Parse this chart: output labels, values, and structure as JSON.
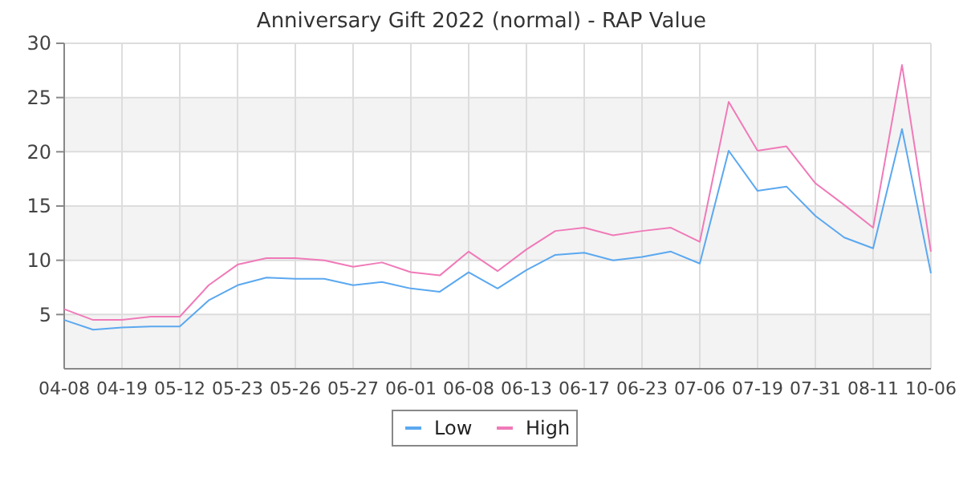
{
  "chart_data": {
    "type": "line",
    "title": "Anniversary Gift 2022 (normal) - RAP Value",
    "categories": [
      "04-08",
      null,
      "04-19",
      null,
      "05-12",
      null,
      "05-23",
      null,
      "05-26",
      null,
      "05-27",
      null,
      "06-01",
      null,
      "06-08",
      null,
      "06-13",
      null,
      "06-17",
      null,
      "06-23",
      null,
      "07-06",
      null,
      "07-19",
      null,
      "07-31",
      null,
      "08-11",
      null,
      "10-06"
    ],
    "series": [
      {
        "name": "Low",
        "color": "#5ba8f0",
        "values": [
          4.5,
          3.6,
          3.8,
          3.9,
          3.9,
          6.3,
          7.7,
          8.4,
          8.3,
          8.3,
          7.7,
          8.0,
          7.4,
          7.1,
          8.9,
          7.4,
          9.1,
          10.5,
          10.7,
          10.0,
          10.3,
          10.8,
          9.7,
          20.1,
          16.4,
          16.8,
          14.1,
          12.1,
          11.1,
          22.1,
          8.8
        ]
      },
      {
        "name": "High",
        "color": "#f07ab8",
        "values": [
          5.5,
          4.5,
          4.5,
          4.8,
          4.8,
          7.7,
          9.6,
          10.2,
          10.2,
          10.0,
          9.4,
          9.8,
          8.9,
          8.6,
          10.8,
          9.0,
          11.0,
          12.7,
          13.0,
          12.3,
          12.7,
          13.0,
          11.7,
          24.6,
          20.1,
          20.5,
          17.1,
          15.1,
          13.0,
          28.0,
          10.8
        ]
      }
    ],
    "ylim": [
      0,
      30
    ],
    "yticks": [
      5,
      10,
      15,
      20,
      25,
      30
    ],
    "grid": true,
    "legend": "bottom",
    "marker": "none",
    "line_style": "solid"
  }
}
